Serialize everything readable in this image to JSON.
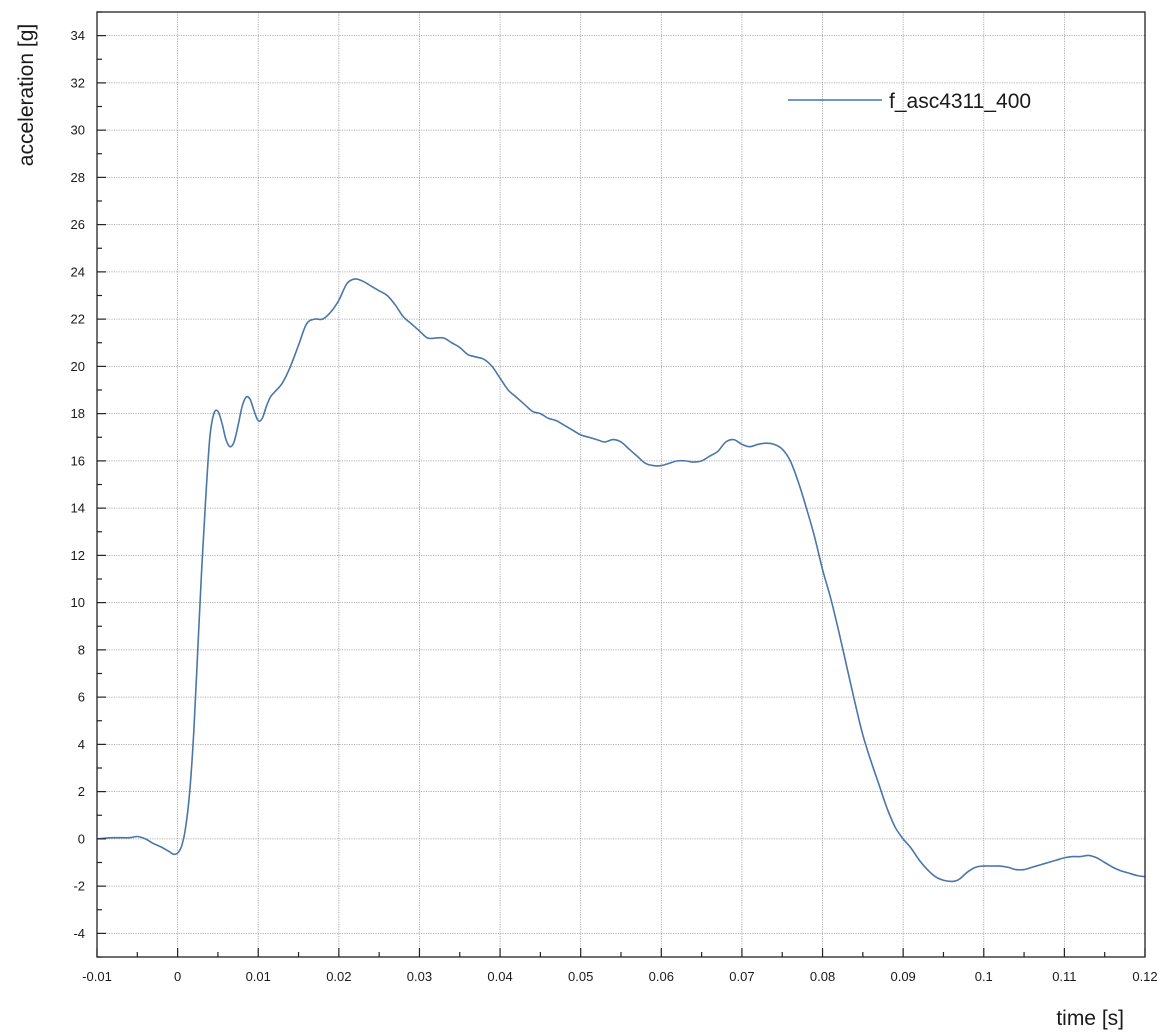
{
  "chart_data": {
    "type": "line",
    "title": "",
    "xlabel": "time [s]",
    "ylabel": "acceleration [g]",
    "xlim": [
      -0.01,
      0.12
    ],
    "ylim": [
      -5,
      35
    ],
    "x_ticks": [
      -0.01,
      0,
      0.01,
      0.02,
      0.03,
      0.04,
      0.05,
      0.06,
      0.07,
      0.08,
      0.09,
      0.1,
      0.11,
      0.12
    ],
    "x_tick_labels": [
      "-0.01",
      "0",
      "0.01",
      "0.02",
      "0.03",
      "0.04",
      "0.05",
      "0.06",
      "0.07",
      "0.08",
      "0.09",
      "0.1",
      "0.11",
      "0.12"
    ],
    "y_ticks": [
      -4,
      -2,
      0,
      2,
      4,
      6,
      8,
      10,
      12,
      14,
      16,
      18,
      20,
      22,
      24,
      26,
      28,
      30,
      32,
      34
    ],
    "y_tick_labels": [
      "-4",
      "-2",
      "0",
      "2",
      "4",
      "6",
      "8",
      "10",
      "12",
      "14",
      "16",
      "18",
      "20",
      "22",
      "24",
      "26",
      "28",
      "30",
      "32",
      "34"
    ],
    "grid": true,
    "legend_position": "top-right",
    "series": [
      {
        "name": "f_asc4311_400",
        "color": "#4a76a8",
        "x": [
          -0.01,
          -0.008,
          -0.006,
          -0.005,
          -0.004,
          -0.003,
          -0.002,
          -0.001,
          -0.0005,
          0,
          0.0005,
          0.001,
          0.0015,
          0.002,
          0.0025,
          0.003,
          0.0035,
          0.004,
          0.0045,
          0.005,
          0.0055,
          0.006,
          0.0065,
          0.007,
          0.0075,
          0.008,
          0.0085,
          0.009,
          0.0095,
          0.01,
          0.0105,
          0.011,
          0.0115,
          0.012,
          0.013,
          0.014,
          0.015,
          0.016,
          0.017,
          0.018,
          0.019,
          0.02,
          0.021,
          0.022,
          0.023,
          0.024,
          0.025,
          0.026,
          0.027,
          0.028,
          0.029,
          0.03,
          0.031,
          0.032,
          0.033,
          0.034,
          0.035,
          0.036,
          0.037,
          0.038,
          0.039,
          0.04,
          0.041,
          0.042,
          0.043,
          0.044,
          0.045,
          0.046,
          0.047,
          0.048,
          0.049,
          0.05,
          0.051,
          0.052,
          0.053,
          0.054,
          0.055,
          0.056,
          0.057,
          0.058,
          0.059,
          0.06,
          0.061,
          0.062,
          0.063,
          0.064,
          0.065,
          0.066,
          0.067,
          0.068,
          0.069,
          0.07,
          0.071,
          0.072,
          0.073,
          0.074,
          0.075,
          0.076,
          0.077,
          0.078,
          0.079,
          0.08,
          0.081,
          0.082,
          0.083,
          0.084,
          0.085,
          0.086,
          0.087,
          0.088,
          0.089,
          0.09,
          0.091,
          0.092,
          0.093,
          0.094,
          0.095,
          0.096,
          0.0965,
          0.097,
          0.098,
          0.099,
          0.1,
          0.101,
          0.102,
          0.103,
          0.104,
          0.105,
          0.106,
          0.107,
          0.108,
          0.109,
          0.11,
          0.111,
          0.112,
          0.113,
          0.114,
          0.115,
          0.116,
          0.117,
          0.118,
          0.119,
          0.12
        ],
        "y": [
          0.0,
          0.05,
          0.05,
          0.1,
          0.0,
          -0.2,
          -0.35,
          -0.55,
          -0.65,
          -0.6,
          -0.3,
          0.5,
          2.0,
          4.5,
          8.0,
          11.5,
          14.5,
          17.0,
          18.0,
          18.1,
          17.6,
          16.9,
          16.6,
          16.8,
          17.5,
          18.3,
          18.7,
          18.6,
          18.1,
          17.7,
          17.8,
          18.3,
          18.7,
          18.9,
          19.3,
          20.0,
          20.9,
          21.8,
          22.0,
          22.0,
          22.3,
          22.8,
          23.5,
          23.7,
          23.6,
          23.4,
          23.2,
          23.0,
          22.6,
          22.1,
          21.8,
          21.5,
          21.2,
          21.2,
          21.2,
          21.0,
          20.8,
          20.5,
          20.4,
          20.3,
          20.0,
          19.5,
          19.0,
          18.7,
          18.4,
          18.1,
          18.0,
          17.8,
          17.7,
          17.5,
          17.3,
          17.1,
          17.0,
          16.9,
          16.8,
          16.9,
          16.8,
          16.5,
          16.2,
          15.9,
          15.8,
          15.8,
          15.9,
          16.0,
          16.0,
          15.95,
          16.0,
          16.2,
          16.4,
          16.8,
          16.9,
          16.7,
          16.6,
          16.7,
          16.75,
          16.7,
          16.5,
          16.0,
          15.1,
          14.0,
          12.8,
          11.4,
          10.2,
          8.8,
          7.3,
          5.8,
          4.4,
          3.3,
          2.3,
          1.3,
          0.5,
          0.0,
          -0.4,
          -0.9,
          -1.3,
          -1.6,
          -1.75,
          -1.8,
          -1.78,
          -1.7,
          -1.4,
          -1.2,
          -1.15,
          -1.15,
          -1.15,
          -1.2,
          -1.3,
          -1.3,
          -1.2,
          -1.1,
          -1.0,
          -0.9,
          -0.8,
          -0.75,
          -0.75,
          -0.7,
          -0.8,
          -1.0,
          -1.2,
          -1.35,
          -1.45,
          -1.55,
          -1.6
        ]
      }
    ]
  }
}
